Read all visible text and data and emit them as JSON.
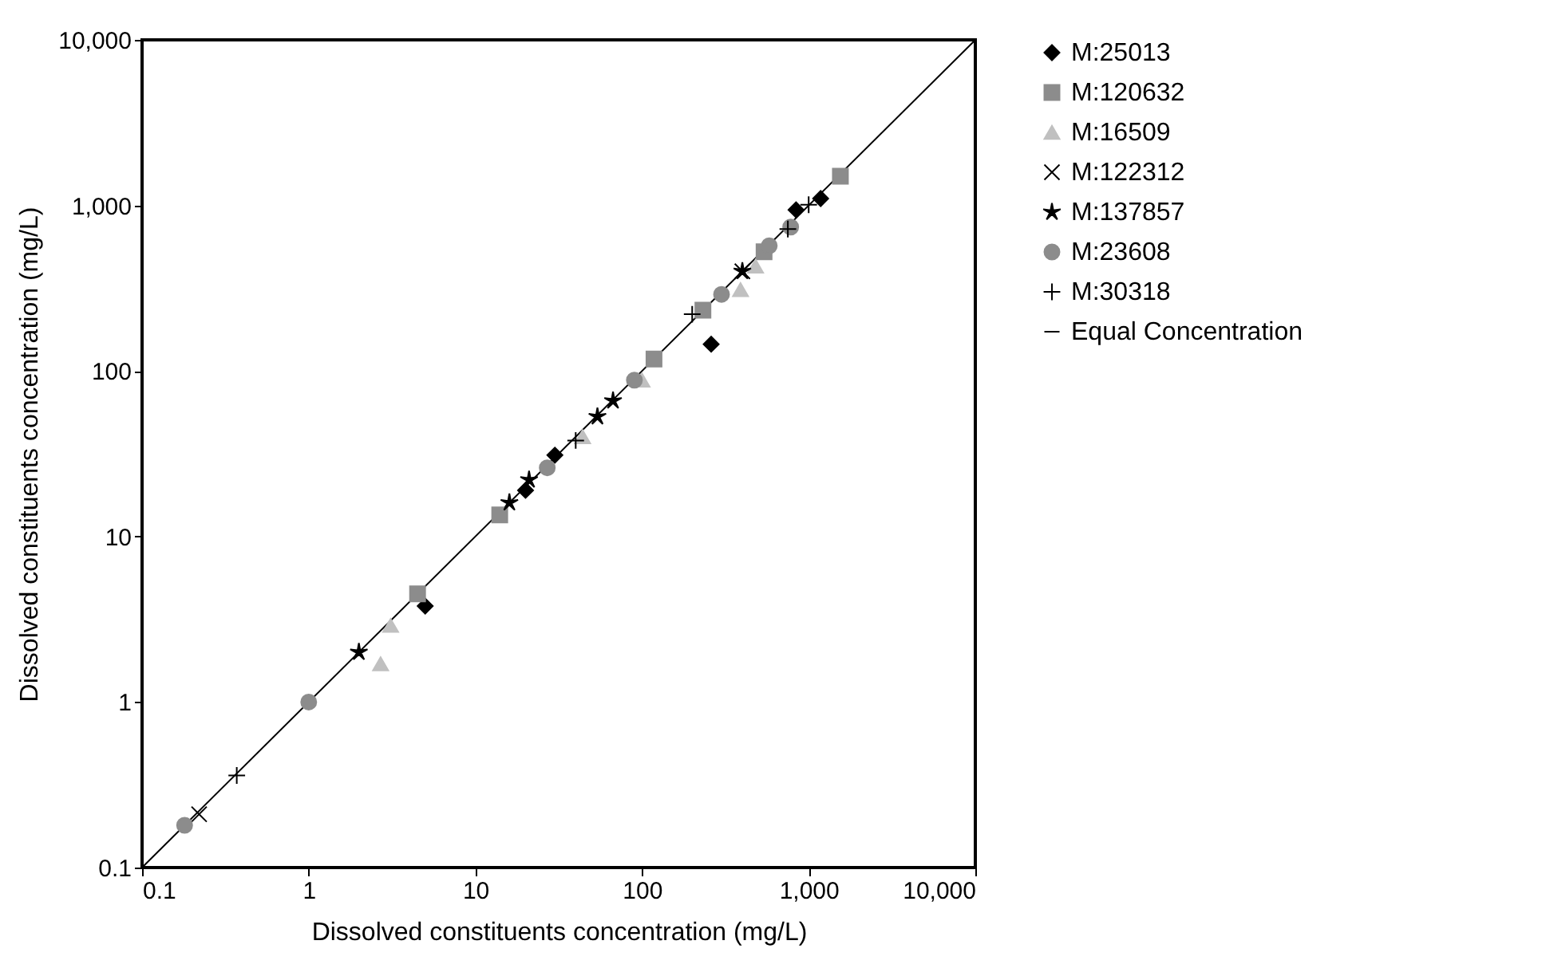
{
  "chart_data": {
    "type": "scatter",
    "xlabel": "Dissolved constituents concentration (mg/L)",
    "ylabel": "Dissolved constituents concentration (mg/L)",
    "log": "xy",
    "xlim": [
      0.1,
      10000
    ],
    "ylim": [
      0.1,
      10000
    ],
    "xticks": [
      0.1,
      1,
      10,
      100,
      {
        "value": 1000,
        "label": "1,000"
      },
      {
        "value": 10000,
        "label": "10,000"
      }
    ],
    "yticks": [
      0.1,
      1,
      10,
      100,
      {
        "value": 1000,
        "label": "1,000"
      },
      {
        "value": 10000,
        "label": "10,000"
      }
    ],
    "grid": false,
    "legend": "right",
    "series": [
      {
        "name": "M:25013",
        "color": "#000000",
        "marker": "diamond",
        "x": [
          5,
          20,
          30,
          260,
          840,
          1180
        ],
        "values": [
          3.8,
          19,
          31,
          145,
          940,
          1100
        ]
      },
      {
        "name": "M:120632",
        "color": "#8c8c8c",
        "marker": "square",
        "x": [
          4.5,
          14,
          118,
          232,
          540,
          1550
        ],
        "values": [
          4.5,
          13.5,
          118,
          233,
          525,
          1500
        ]
      },
      {
        "name": "M:16509",
        "color": "#c0c0c0",
        "marker": "triangle",
        "x": [
          3.1,
          2.7,
          44,
          100,
          390,
          480
        ],
        "values": [
          2.9,
          1.7,
          40,
          88,
          310,
          430
        ]
      },
      {
        "name": "M:122312",
        "color": "#000000",
        "marker": "x",
        "x": [
          0.22,
          400
        ],
        "values": [
          0.21,
          400
        ]
      },
      {
        "name": "M:137857",
        "color": "#000000",
        "marker": "star",
        "x": [
          2,
          16,
          21,
          54,
          67,
          400
        ],
        "values": [
          2,
          16,
          22,
          53,
          66,
          400
        ]
      },
      {
        "name": "M:23608",
        "color": "#8c8c8c",
        "marker": "circle",
        "x": [
          0.18,
          1,
          27,
          90,
          300,
          580,
          780
        ],
        "values": [
          0.18,
          1,
          26,
          88,
          290,
          570,
          740
        ]
      },
      {
        "name": "M:30318",
        "color": "#000000",
        "marker": "cross",
        "x": [
          0.37,
          40,
          200,
          750,
          1000
        ],
        "values": [
          0.36,
          38,
          220,
          720,
          1010
        ]
      },
      {
        "name": "Equal Concentration",
        "type": "line",
        "color": "#000000",
        "line_style": "solid",
        "x": [
          0.1,
          10000
        ],
        "values": [
          0.1,
          10000
        ]
      }
    ]
  }
}
